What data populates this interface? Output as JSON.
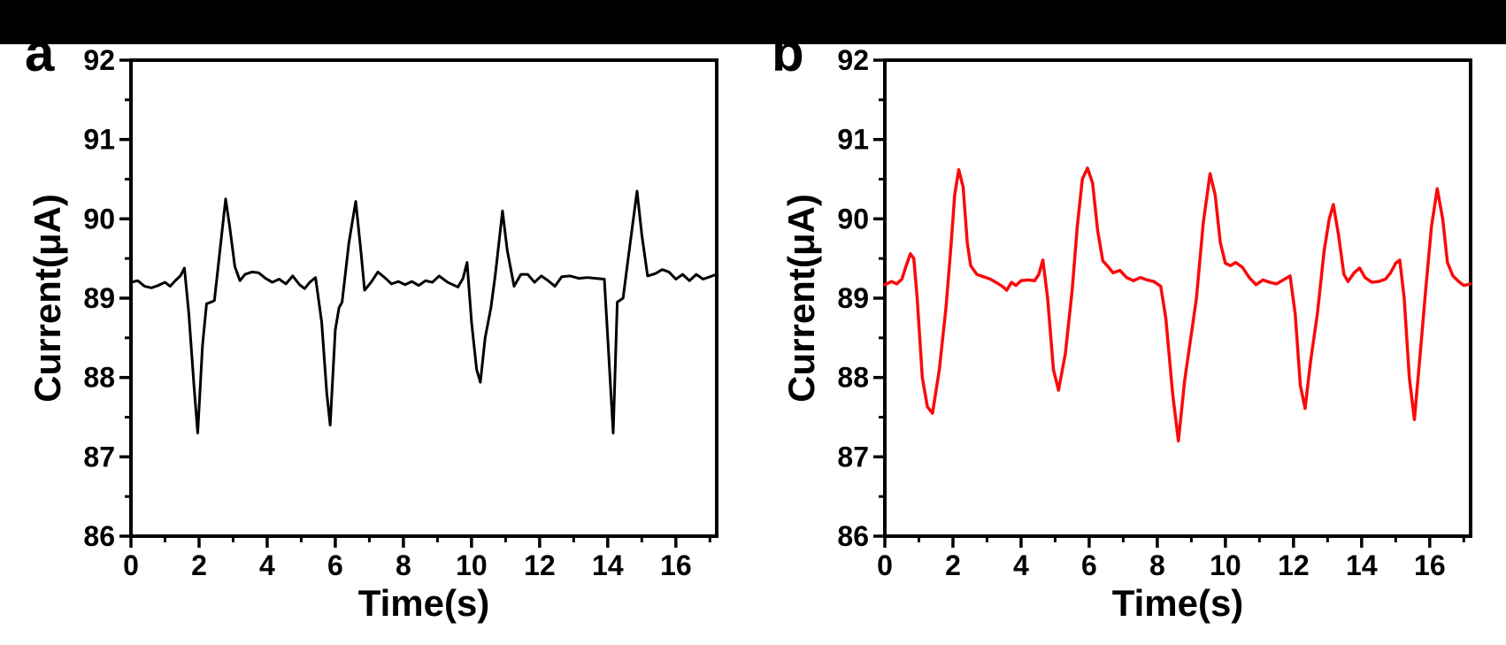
{
  "page": {
    "background_color": "#ffffff",
    "top_bar_color": "#000000"
  },
  "chart_data": [
    {
      "type": "line",
      "panel_label": "a",
      "xlabel": "Time(s)",
      "ylabel": "Current(μA)",
      "xlim": [
        0,
        17.2
      ],
      "ylim": [
        86,
        92
      ],
      "xticks_major": [
        0,
        2,
        4,
        6,
        8,
        10,
        12,
        14,
        16
      ],
      "xticks_minor": [
        1,
        3,
        5,
        7,
        9,
        11,
        13,
        15,
        17
      ],
      "yticks_major": [
        86,
        87,
        88,
        89,
        90,
        91,
        92
      ],
      "yticks_minor": [
        86.5,
        87.5,
        88.5,
        89.5,
        90.5,
        91.5
      ],
      "grid": false,
      "legend": null,
      "line_color": "#000000",
      "line_width": 3,
      "series": [
        {
          "name": "current-trace-a",
          "points": [
            [
              0,
              89.2
            ],
            [
              0.2,
              89.22
            ],
            [
              0.4,
              89.15
            ],
            [
              0.6,
              89.13
            ],
            [
              0.8,
              89.16
            ],
            [
              1.0,
              89.2
            ],
            [
              1.15,
              89.15
            ],
            [
              1.3,
              89.22
            ],
            [
              1.45,
              89.28
            ],
            [
              1.57,
              89.38
            ],
            [
              1.7,
              88.8
            ],
            [
              1.85,
              87.9
            ],
            [
              1.96,
              87.3
            ],
            [
              2.1,
              88.4
            ],
            [
              2.22,
              88.93
            ],
            [
              2.35,
              88.95
            ],
            [
              2.45,
              88.97
            ],
            [
              2.6,
              89.55
            ],
            [
              2.78,
              90.25
            ],
            [
              2.9,
              89.9
            ],
            [
              3.05,
              89.4
            ],
            [
              3.2,
              89.22
            ],
            [
              3.35,
              89.3
            ],
            [
              3.55,
              89.33
            ],
            [
              3.75,
              89.32
            ],
            [
              3.95,
              89.25
            ],
            [
              4.15,
              89.2
            ],
            [
              4.35,
              89.24
            ],
            [
              4.55,
              89.18
            ],
            [
              4.75,
              89.28
            ],
            [
              4.95,
              89.17
            ],
            [
              5.1,
              89.12
            ],
            [
              5.25,
              89.2
            ],
            [
              5.42,
              89.26
            ],
            [
              5.6,
              88.7
            ],
            [
              5.75,
              87.8
            ],
            [
              5.85,
              87.4
            ],
            [
              6.0,
              88.6
            ],
            [
              6.11,
              88.88
            ],
            [
              6.2,
              88.95
            ],
            [
              6.4,
              89.7
            ],
            [
              6.6,
              90.22
            ],
            [
              6.75,
              89.6
            ],
            [
              6.86,
              89.1
            ],
            [
              7.05,
              89.2
            ],
            [
              7.25,
              89.33
            ],
            [
              7.45,
              89.26
            ],
            [
              7.65,
              89.18
            ],
            [
              7.85,
              89.21
            ],
            [
              8.05,
              89.17
            ],
            [
              8.25,
              89.21
            ],
            [
              8.45,
              89.16
            ],
            [
              8.65,
              89.22
            ],
            [
              8.85,
              89.2
            ],
            [
              9.05,
              89.28
            ],
            [
              9.3,
              89.2
            ],
            [
              9.6,
              89.14
            ],
            [
              9.75,
              89.25
            ],
            [
              9.87,
              89.45
            ],
            [
              10.0,
              88.7
            ],
            [
              10.15,
              88.1
            ],
            [
              10.26,
              87.94
            ],
            [
              10.4,
              88.5
            ],
            [
              10.57,
              88.88
            ],
            [
              10.7,
              89.3
            ],
            [
              10.91,
              90.1
            ],
            [
              11.05,
              89.6
            ],
            [
              11.25,
              89.15
            ],
            [
              11.45,
              89.3
            ],
            [
              11.65,
              89.3
            ],
            [
              11.85,
              89.2
            ],
            [
              12.05,
              89.28
            ],
            [
              12.25,
              89.22
            ],
            [
              12.45,
              89.15
            ],
            [
              12.65,
              89.27
            ],
            [
              12.9,
              89.28
            ],
            [
              13.15,
              89.25
            ],
            [
              13.4,
              89.26
            ],
            [
              13.65,
              89.25
            ],
            [
              13.9,
              89.24
            ],
            [
              14.0,
              88.5
            ],
            [
              14.16,
              87.3
            ],
            [
              14.28,
              88.95
            ],
            [
              14.45,
              89.0
            ],
            [
              14.6,
              89.5
            ],
            [
              14.86,
              90.35
            ],
            [
              15.0,
              89.8
            ],
            [
              15.17,
              89.28
            ],
            [
              15.4,
              89.31
            ],
            [
              15.6,
              89.36
            ],
            [
              15.8,
              89.33
            ],
            [
              16.0,
              89.24
            ],
            [
              16.2,
              89.3
            ],
            [
              16.4,
              89.22
            ],
            [
              16.6,
              89.3
            ],
            [
              16.8,
              89.24
            ],
            [
              17.0,
              89.27
            ],
            [
              17.19,
              89.3
            ]
          ]
        }
      ]
    },
    {
      "type": "line",
      "panel_label": "b",
      "xlabel": "Time(s)",
      "ylabel": "Current(μA)",
      "xlim": [
        0,
        17.2
      ],
      "ylim": [
        86,
        92
      ],
      "xticks_major": [
        0,
        2,
        4,
        6,
        8,
        10,
        12,
        14,
        16
      ],
      "xticks_minor": [
        1,
        3,
        5,
        7,
        9,
        11,
        13,
        15,
        17
      ],
      "yticks_major": [
        86,
        87,
        88,
        89,
        90,
        91,
        92
      ],
      "yticks_minor": [
        86.5,
        87.5,
        88.5,
        89.5,
        90.5,
        91.5
      ],
      "grid": false,
      "legend": null,
      "line_color": "#fa0a0a",
      "line_width": 3.5,
      "series": [
        {
          "name": "current-trace-b",
          "points": [
            [
              0,
              89.17
            ],
            [
              0.2,
              89.21
            ],
            [
              0.35,
              89.18
            ],
            [
              0.5,
              89.24
            ],
            [
              0.62,
              89.4
            ],
            [
              0.75,
              89.56
            ],
            [
              0.85,
              89.5
            ],
            [
              0.95,
              89.0
            ],
            [
              1.1,
              88.0
            ],
            [
              1.25,
              87.63
            ],
            [
              1.4,
              87.55
            ],
            [
              1.6,
              88.1
            ],
            [
              1.8,
              88.9
            ],
            [
              1.95,
              89.7
            ],
            [
              2.05,
              90.3
            ],
            [
              2.17,
              90.62
            ],
            [
              2.3,
              90.4
            ],
            [
              2.42,
              89.7
            ],
            [
              2.52,
              89.41
            ],
            [
              2.7,
              89.3
            ],
            [
              2.9,
              89.27
            ],
            [
              3.1,
              89.24
            ],
            [
              3.3,
              89.19
            ],
            [
              3.45,
              89.15
            ],
            [
              3.58,
              89.1
            ],
            [
              3.72,
              89.2
            ],
            [
              3.85,
              89.16
            ],
            [
              4.0,
              89.22
            ],
            [
              4.2,
              89.23
            ],
            [
              4.4,
              89.22
            ],
            [
              4.52,
              89.3
            ],
            [
              4.64,
              89.48
            ],
            [
              4.78,
              89.0
            ],
            [
              4.95,
              88.1
            ],
            [
              5.1,
              87.84
            ],
            [
              5.3,
              88.3
            ],
            [
              5.5,
              89.1
            ],
            [
              5.65,
              89.9
            ],
            [
              5.8,
              90.5
            ],
            [
              5.95,
              90.64
            ],
            [
              6.1,
              90.45
            ],
            [
              6.25,
              89.85
            ],
            [
              6.4,
              89.47
            ],
            [
              6.55,
              89.4
            ],
            [
              6.7,
              89.32
            ],
            [
              6.9,
              89.35
            ],
            [
              7.1,
              89.26
            ],
            [
              7.3,
              89.22
            ],
            [
              7.5,
              89.26
            ],
            [
              7.7,
              89.23
            ],
            [
              7.9,
              89.21
            ],
            [
              8.1,
              89.15
            ],
            [
              8.25,
              88.75
            ],
            [
              8.45,
              87.8
            ],
            [
              8.62,
              87.2
            ],
            [
              8.8,
              87.95
            ],
            [
              9.0,
              88.55
            ],
            [
              9.15,
              89.0
            ],
            [
              9.35,
              89.95
            ],
            [
              9.55,
              90.57
            ],
            [
              9.7,
              90.3
            ],
            [
              9.85,
              89.7
            ],
            [
              10.0,
              89.44
            ],
            [
              10.15,
              89.41
            ],
            [
              10.3,
              89.45
            ],
            [
              10.5,
              89.39
            ],
            [
              10.7,
              89.26
            ],
            [
              10.9,
              89.17
            ],
            [
              11.1,
              89.23
            ],
            [
              11.3,
              89.2
            ],
            [
              11.5,
              89.18
            ],
            [
              11.7,
              89.23
            ],
            [
              11.9,
              89.28
            ],
            [
              12.05,
              88.8
            ],
            [
              12.2,
              87.9
            ],
            [
              12.34,
              87.61
            ],
            [
              12.5,
              88.2
            ],
            [
              12.7,
              88.8
            ],
            [
              12.9,
              89.6
            ],
            [
              13.05,
              90.0
            ],
            [
              13.17,
              90.18
            ],
            [
              13.32,
              89.8
            ],
            [
              13.48,
              89.3
            ],
            [
              13.6,
              89.21
            ],
            [
              13.78,
              89.32
            ],
            [
              13.94,
              89.38
            ],
            [
              14.1,
              89.26
            ],
            [
              14.3,
              89.2
            ],
            [
              14.5,
              89.21
            ],
            [
              14.7,
              89.24
            ],
            [
              14.85,
              89.32
            ],
            [
              15.0,
              89.44
            ],
            [
              15.12,
              89.48
            ],
            [
              15.25,
              89.0
            ],
            [
              15.4,
              88.0
            ],
            [
              15.55,
              87.47
            ],
            [
              15.72,
              88.3
            ],
            [
              15.88,
              89.1
            ],
            [
              16.05,
              89.9
            ],
            [
              16.22,
              90.38
            ],
            [
              16.38,
              90.0
            ],
            [
              16.52,
              89.45
            ],
            [
              16.68,
              89.28
            ],
            [
              16.85,
              89.21
            ],
            [
              17.0,
              89.16
            ],
            [
              17.19,
              89.18
            ]
          ]
        }
      ]
    }
  ]
}
